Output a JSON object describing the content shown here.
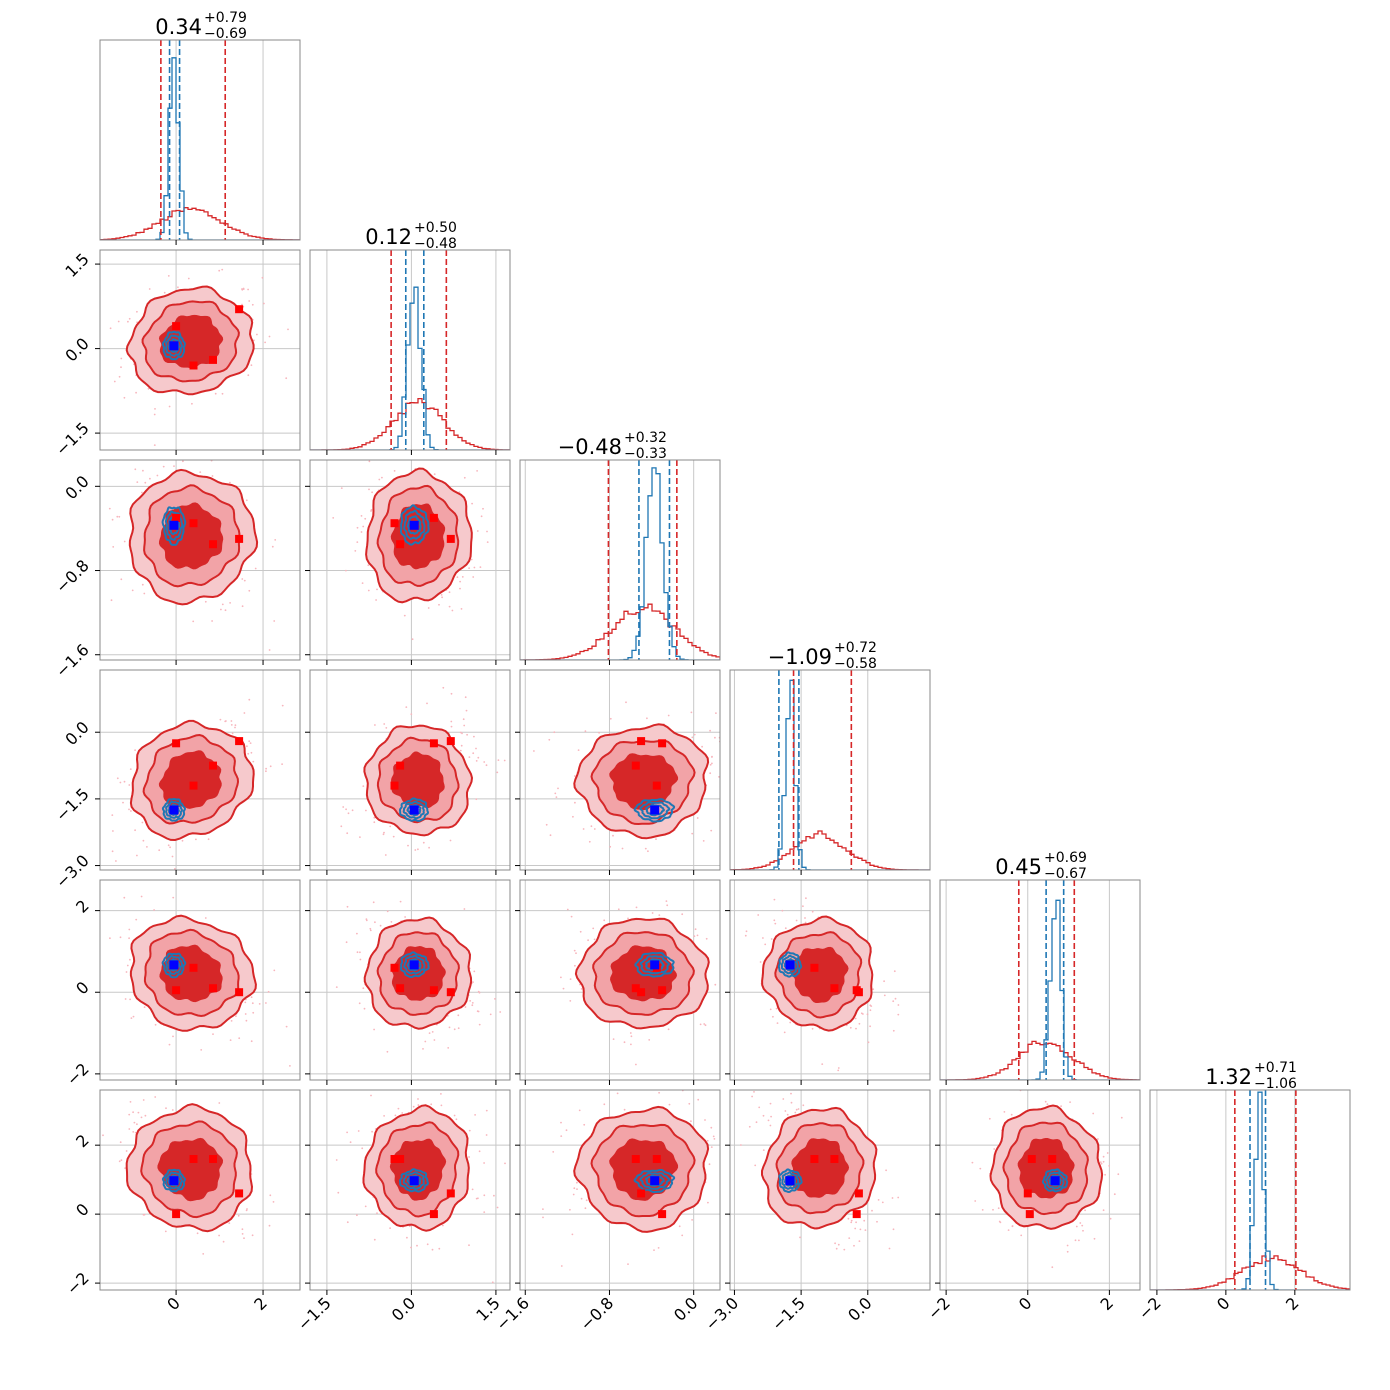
{
  "chart_data": {
    "type": "corner",
    "parameter_count": 6,
    "colors": {
      "broad": "#d62728",
      "broad_fill_outer": "#f2a3a7",
      "broad_fill_inner": "#d62728",
      "broad_points": "#f7b6bd",
      "narrow": "#1f77b4",
      "truth": "#0000ff",
      "markers": "#ff0000",
      "grid": "#c8c8c8",
      "frame": "#888888"
    },
    "titles": [
      {
        "value": "0.34",
        "plus": "+0.79",
        "minus": "−0.69"
      },
      {
        "value": "0.12",
        "plus": "+0.50",
        "minus": "−0.48"
      },
      {
        "value": "−0.48",
        "plus": "+0.32",
        "minus": "−0.33"
      },
      {
        "value": "−1.09",
        "plus": "+0.72",
        "minus": "−0.58"
      },
      {
        "value": "0.45",
        "plus": "+0.69",
        "minus": "−0.67"
      },
      {
        "value": "1.32",
        "plus": "+0.71",
        "minus": "−1.06"
      }
    ],
    "axes": [
      {
        "range": [
          -1.75,
          2.85
        ],
        "ticks": [
          0,
          2
        ],
        "tick_labels": [
          "0",
          "2"
        ]
      },
      {
        "range": [
          -1.8,
          1.75
        ],
        "ticks": [
          -1.5,
          0.0,
          1.5
        ],
        "tick_labels": [
          "−1.5",
          "0.0",
          "1.5"
        ]
      },
      {
        "range": [
          -1.65,
          0.25
        ],
        "ticks": [
          -1.6,
          -0.8,
          0.0
        ],
        "tick_labels": [
          "−1.6",
          "−0.8",
          "0.0"
        ]
      },
      {
        "range": [
          -3.1,
          1.4
        ],
        "ticks": [
          -3.0,
          -1.5,
          0.0
        ],
        "tick_labels": [
          "−3.0",
          "−1.5",
          "0.0"
        ]
      },
      {
        "range": [
          -2.15,
          2.75
        ],
        "ticks": [
          -2,
          0,
          2
        ],
        "tick_labels": [
          "−2",
          "0",
          "2"
        ]
      },
      {
        "range": [
          -2.2,
          3.6
        ],
        "ticks": [
          -2,
          0,
          2
        ],
        "tick_labels": [
          "−2",
          "0",
          "2"
        ]
      }
    ],
    "broad_posterior": {
      "mean": [
        0.34,
        0.12,
        -0.48,
        -1.09,
        0.45,
        1.32
      ],
      "std": [
        0.7,
        0.45,
        0.3,
        0.6,
        0.65,
        0.85
      ],
      "quantile_lines": [
        [
          -0.35,
          1.13
        ],
        [
          -0.36,
          0.62
        ],
        [
          -0.81,
          -0.16
        ],
        [
          -1.67,
          -0.37
        ],
        [
          -0.22,
          1.14
        ],
        [
          0.26,
          2.03
        ]
      ]
    },
    "narrow_posterior": {
      "mean": [
        -0.05,
        0.05,
        -0.37,
        -1.75,
        0.67,
        0.97
      ],
      "std": [
        0.11,
        0.11,
        0.08,
        0.11,
        0.13,
        0.14
      ],
      "quantile_lines": [
        [
          -0.15,
          0.08
        ],
        [
          -0.1,
          0.22
        ],
        [
          -0.52,
          -0.23
        ],
        [
          -2.0,
          -1.55
        ],
        [
          0.45,
          0.88
        ],
        [
          0.7,
          1.15
        ]
      ]
    },
    "truth": [
      -0.05,
      0.05,
      -0.37,
      -1.75,
      0.67,
      0.97
    ],
    "markers": [
      [
        -0.05,
        0.05,
        -0.37,
        -1.75,
        0.67,
        0.97
      ],
      [
        0.4,
        -0.3,
        -0.35,
        -1.2,
        0.6,
        1.6
      ],
      [
        0.85,
        -0.2,
        -0.55,
        -0.75,
        0.1,
        1.6
      ],
      [
        1.45,
        0.7,
        -0.5,
        -0.2,
        0.0,
        0.6
      ],
      [
        0.0,
        0.4,
        -0.3,
        -0.25,
        0.05,
        0.0
      ]
    ]
  }
}
